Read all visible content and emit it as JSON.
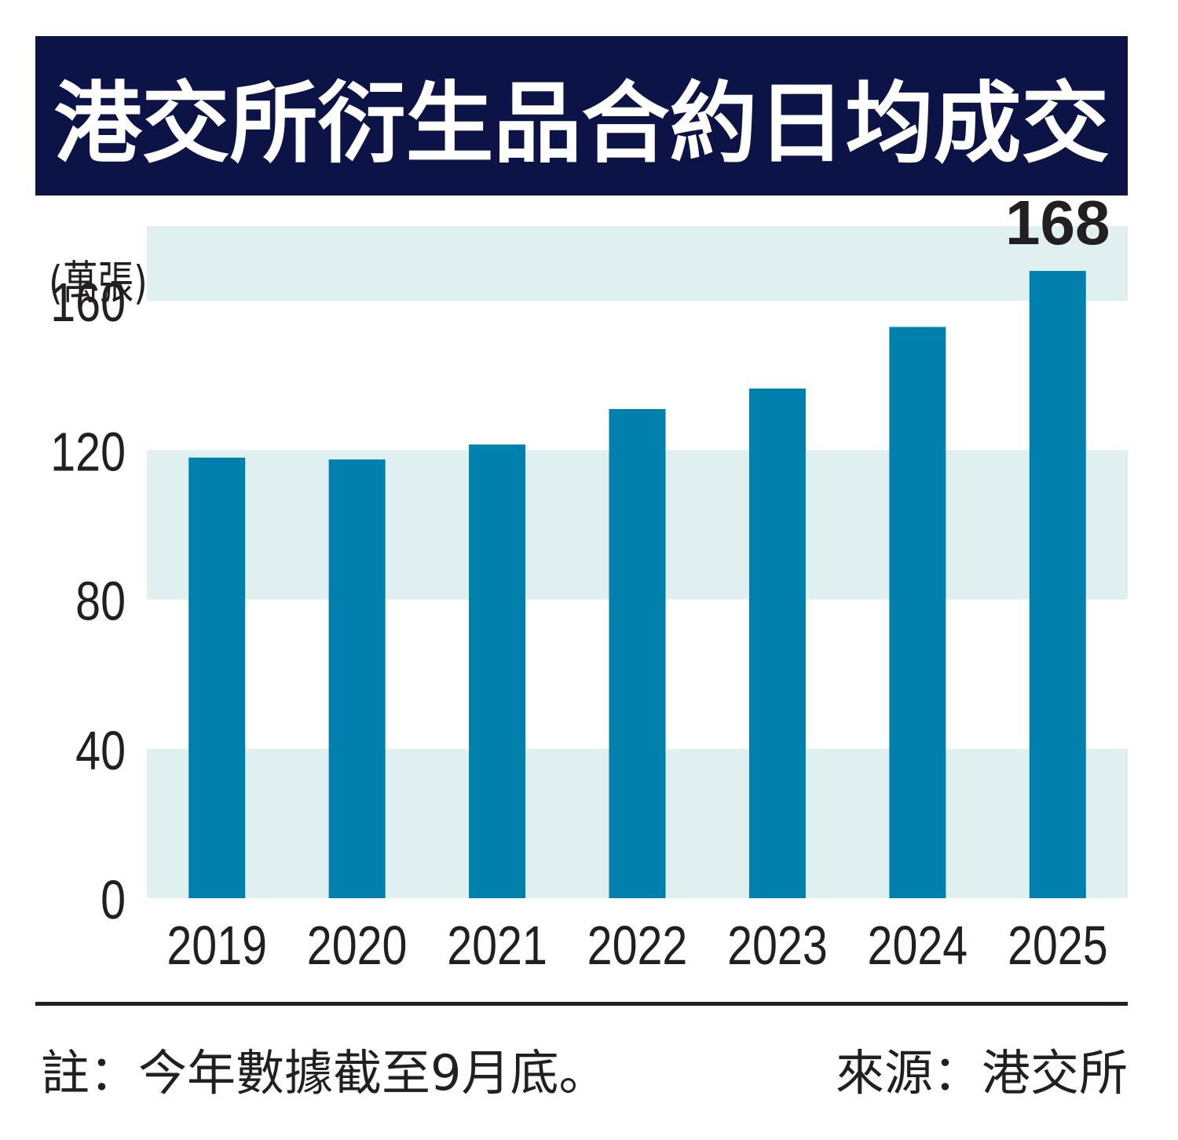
{
  "title": "港交所衍生品合約日均成交",
  "colors": {
    "title_background": "#0c1346",
    "bar": "#0080ac",
    "band": "#e0f0f1",
    "text": "#231f20"
  },
  "chart_data": {
    "type": "bar",
    "title": "港交所衍生品合約日均成交",
    "ylabel": "(萬張)",
    "xlabel": "",
    "categories": [
      "2019",
      "2020",
      "2021",
      "2022",
      "2023",
      "2024",
      "2025"
    ],
    "values": [
      118,
      117.5,
      121.5,
      131,
      136.5,
      153,
      168
    ],
    "ylim": [
      0,
      180
    ],
    "yticks": [
      0,
      40,
      80,
      120,
      160
    ],
    "grid": "alternating horizontal bands",
    "data_labels": [
      {
        "category": "2025",
        "text": "168"
      }
    ]
  },
  "footer": {
    "note": "註：今年數據截至9月底。",
    "source": "來源：港交所"
  }
}
